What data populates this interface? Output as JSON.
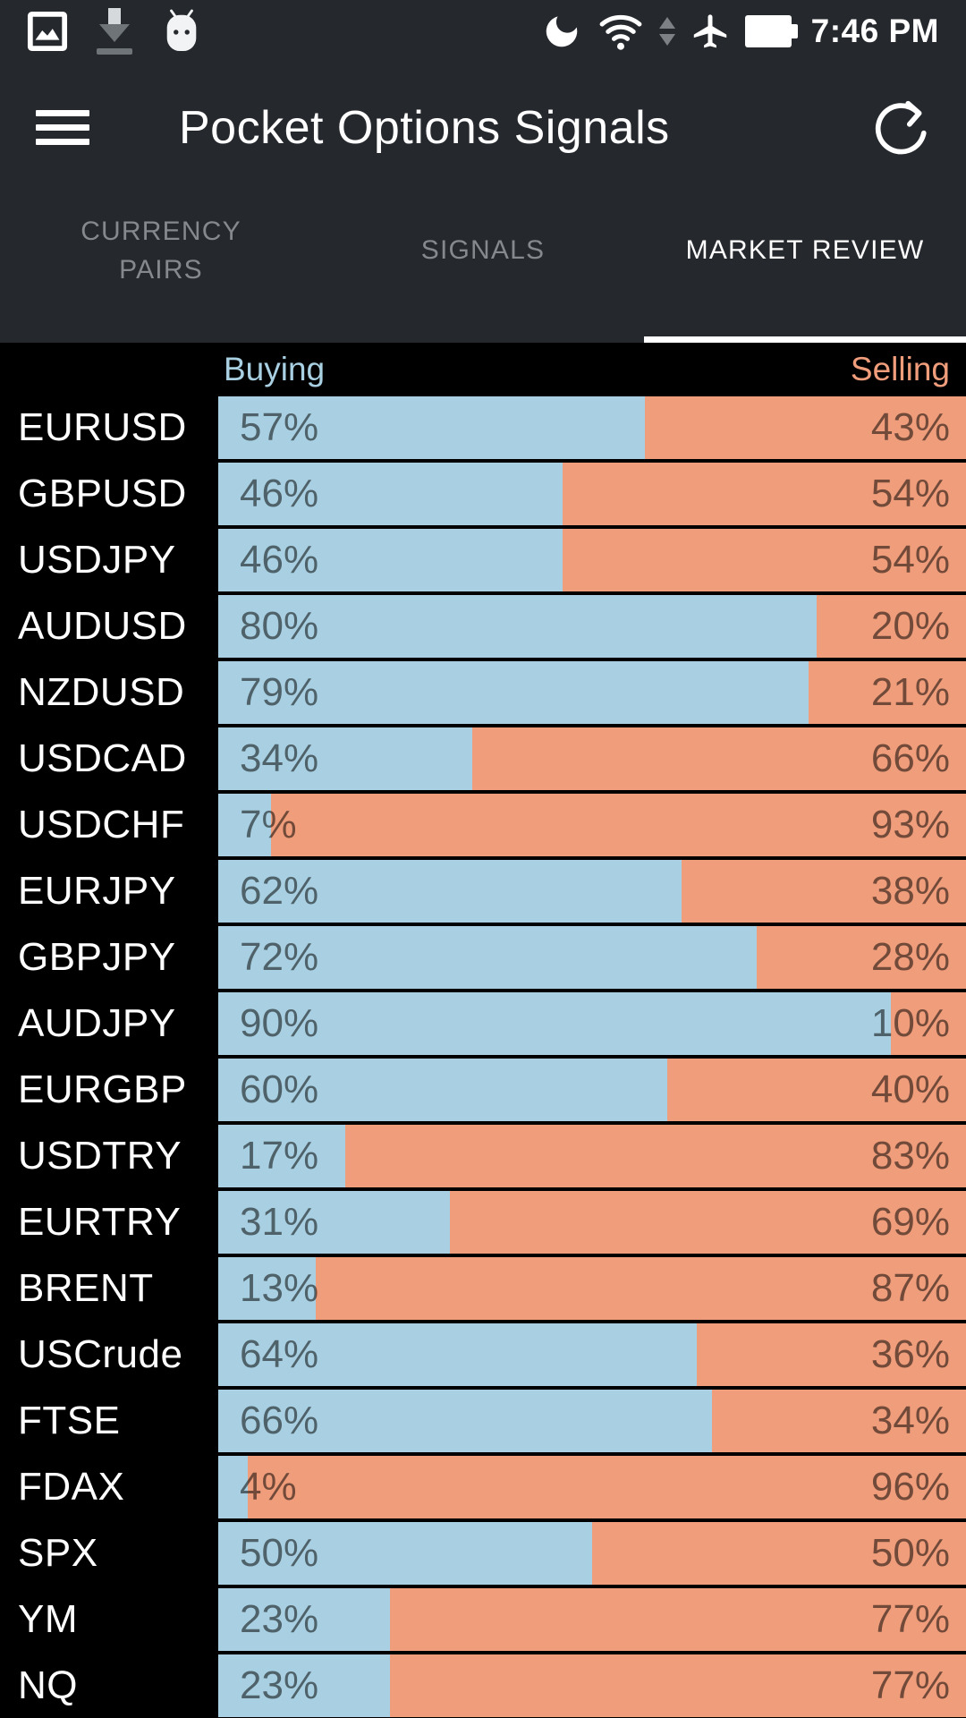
{
  "status_bar": {
    "time": "7:46 PM",
    "left_icons": [
      "photo-icon",
      "download-icon",
      "android-icon"
    ],
    "right_icons": [
      "night-mode-icon",
      "wifi-icon",
      "network-arrows-icon",
      "airplane-mode-icon",
      "battery-icon"
    ]
  },
  "header": {
    "title": "Pocket Options Signals",
    "menu_icon": "hamburger-menu-icon",
    "refresh_icon": "refresh-icon"
  },
  "tabs": [
    {
      "label": "CURRENCY\nPAIRS",
      "active": false
    },
    {
      "label": "SIGNALS",
      "active": false
    },
    {
      "label": "MARKET REVIEW",
      "active": true
    }
  ],
  "chart_data": {
    "type": "bar",
    "orientation": "horizontal-stacked",
    "buy_header": "Buying",
    "sell_header": "Selling",
    "unit": "%",
    "xlim": [
      0,
      100
    ],
    "colors": {
      "buy": "#a8d0e2",
      "sell": "#f09d7b",
      "buy_header_text": "#a8d0e2",
      "sell_header_text": "#f09d7b",
      "pair_text": "#ffffff",
      "background": "#000000"
    },
    "rows": [
      {
        "pair": "EURUSD",
        "buy": 57,
        "sell": 43
      },
      {
        "pair": "GBPUSD",
        "buy": 46,
        "sell": 54
      },
      {
        "pair": "USDJPY",
        "buy": 46,
        "sell": 54
      },
      {
        "pair": "AUDUSD",
        "buy": 80,
        "sell": 20
      },
      {
        "pair": "NZDUSD",
        "buy": 79,
        "sell": 21
      },
      {
        "pair": "USDCAD",
        "buy": 34,
        "sell": 66
      },
      {
        "pair": "USDCHF",
        "buy": 7,
        "sell": 93
      },
      {
        "pair": "EURJPY",
        "buy": 62,
        "sell": 38
      },
      {
        "pair": "GBPJPY",
        "buy": 72,
        "sell": 28
      },
      {
        "pair": "AUDJPY",
        "buy": 90,
        "sell": 10
      },
      {
        "pair": "EURGBP",
        "buy": 60,
        "sell": 40
      },
      {
        "pair": "USDTRY",
        "buy": 17,
        "sell": 83
      },
      {
        "pair": "EURTRY",
        "buy": 31,
        "sell": 69
      },
      {
        "pair": "BRENT",
        "buy": 13,
        "sell": 87
      },
      {
        "pair": "USCrude",
        "buy": 64,
        "sell": 36
      },
      {
        "pair": "FTSE",
        "buy": 66,
        "sell": 34
      },
      {
        "pair": "FDAX",
        "buy": 4,
        "sell": 96
      },
      {
        "pair": "SPX",
        "buy": 50,
        "sell": 50
      },
      {
        "pair": "YM",
        "buy": 23,
        "sell": 77
      },
      {
        "pair": "NQ",
        "buy": 23,
        "sell": 77
      }
    ]
  }
}
